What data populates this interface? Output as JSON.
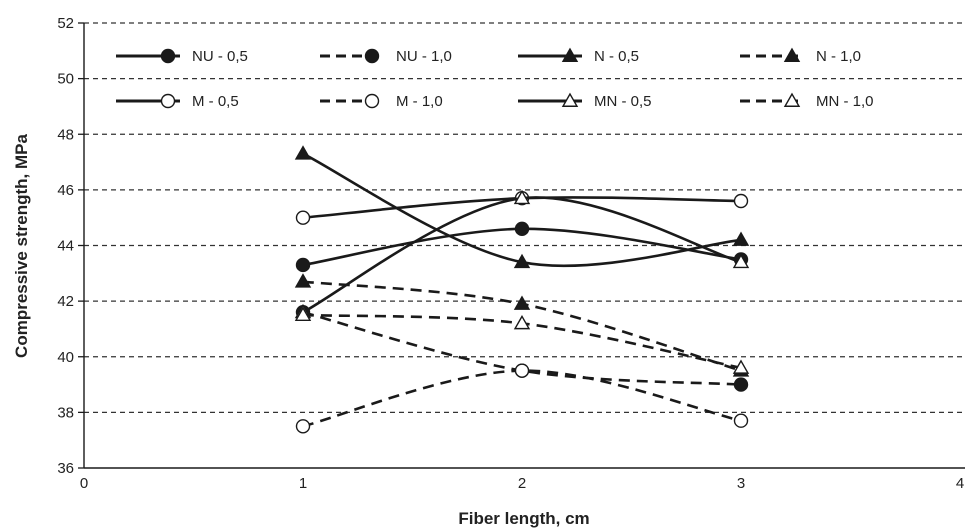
{
  "chart_data": {
    "type": "line",
    "title": "",
    "xlabel": "Fiber length, cm",
    "ylabel": "Compressive strength, MPa",
    "xlim": [
      0,
      4
    ],
    "ylim": [
      36,
      52
    ],
    "x_ticks": [
      "0",
      "1",
      "2",
      "3",
      "4"
    ],
    "y_ticks": [
      "36",
      "38",
      "40",
      "42",
      "44",
      "46",
      "48",
      "50",
      "52"
    ],
    "grid": "horizontal dashed",
    "legend_position": "top",
    "x": [
      1,
      2,
      3
    ],
    "series": [
      {
        "name": "NU - 0,5",
        "values": [
          43.3,
          44.6,
          43.5
        ],
        "line": "solid",
        "marker": "circle-filled"
      },
      {
        "name": "NU - 1,0",
        "values": [
          41.6,
          39.5,
          39.0
        ],
        "line": "dashed",
        "marker": "circle-filled"
      },
      {
        "name": "N - 0,5",
        "values": [
          47.3,
          43.4,
          44.2
        ],
        "line": "solid",
        "marker": "triangle-filled"
      },
      {
        "name": "N - 1,0",
        "values": [
          42.7,
          41.9,
          39.5
        ],
        "line": "dashed",
        "marker": "triangle-filled"
      },
      {
        "name": "M - 0,5",
        "values": [
          45.0,
          45.7,
          45.6
        ],
        "line": "solid",
        "marker": "circle-open"
      },
      {
        "name": "M - 1,0",
        "values": [
          37.5,
          39.5,
          37.7
        ],
        "line": "dashed",
        "marker": "circle-open"
      },
      {
        "name": "MN - 0,5",
        "values": [
          41.6,
          45.7,
          43.4
        ],
        "line": "solid",
        "marker": "triangle-open"
      },
      {
        "name": "MN - 1,0",
        "values": [
          41.5,
          41.2,
          39.6
        ],
        "line": "dashed",
        "marker": "triangle-open"
      }
    ],
    "colors": {
      "line": "#1a1a1a",
      "grid": "#333333",
      "background": "#ffffff"
    }
  }
}
